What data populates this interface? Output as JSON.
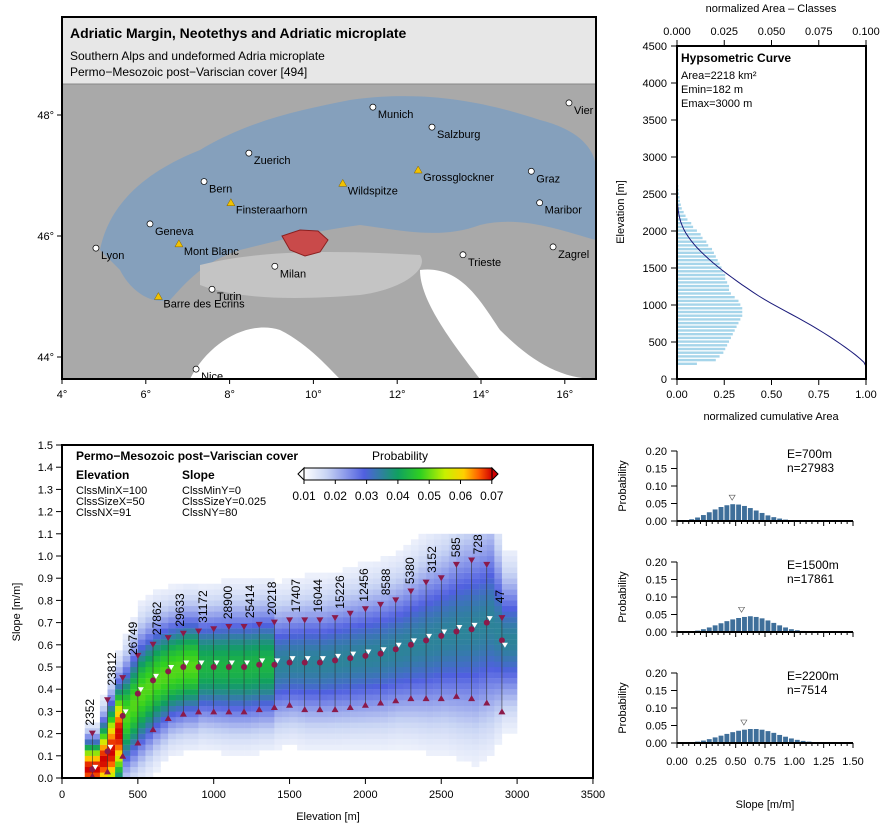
{
  "map": {
    "title": "Adriatic Margin, Neotethys and Adriatic microplate",
    "subtitle1": "Southern Alps and undeformed Adria microplate",
    "subtitle2": "Permo−Mesozoic post−Variscian cover [494]",
    "lon_ticks": [
      "4°",
      "6°",
      "8°",
      "10°",
      "12°",
      "14°",
      "16°"
    ],
    "lat_ticks": [
      "44°",
      "46°",
      "48°"
    ],
    "places": [
      {
        "name": "Munich",
        "lon": 11.42,
        "lat": 48.13,
        "type": "city"
      },
      {
        "name": "Salzburg",
        "lon": 12.83,
        "lat": 47.8,
        "type": "city"
      },
      {
        "name": "Vienna",
        "lon": 16.1,
        "lat": 48.2,
        "type": "city",
        "shown": "Vier"
      },
      {
        "name": "Zuerich",
        "lon": 8.46,
        "lat": 47.37,
        "type": "city"
      },
      {
        "name": "Bern",
        "lon": 7.39,
        "lat": 46.9,
        "type": "city"
      },
      {
        "name": "Wildspitze",
        "lon": 10.7,
        "lat": 46.87,
        "type": "peak"
      },
      {
        "name": "Grossglockner",
        "lon": 12.5,
        "lat": 47.09,
        "type": "peak"
      },
      {
        "name": "Graz",
        "lon": 15.2,
        "lat": 47.07,
        "type": "city"
      },
      {
        "name": "Finsteraarhorn",
        "lon": 8.03,
        "lat": 46.55,
        "type": "peak"
      },
      {
        "name": "Maribor",
        "lon": 15.4,
        "lat": 46.55,
        "type": "city"
      },
      {
        "name": "Geneva",
        "lon": 6.1,
        "lat": 46.2,
        "type": "city"
      },
      {
        "name": "Mont Blanc",
        "lon": 6.79,
        "lat": 45.87,
        "type": "peak"
      },
      {
        "name": "Lyon",
        "lon": 4.81,
        "lat": 45.8,
        "type": "city"
      },
      {
        "name": "Milan",
        "lon": 9.08,
        "lat": 45.5,
        "type": "city"
      },
      {
        "name": "Trieste",
        "lon": 13.57,
        "lat": 45.69,
        "type": "city"
      },
      {
        "name": "Zagreb",
        "lon": 15.72,
        "lat": 45.82,
        "type": "city",
        "shown": "Zagrel"
      },
      {
        "name": "Turin",
        "lon": 7.58,
        "lat": 45.12,
        "type": "city"
      },
      {
        "name": "Barre des Ecrins",
        "lon": 6.3,
        "lat": 45.0,
        "type": "peak"
      },
      {
        "name": "Nice",
        "lon": 7.2,
        "lat": 43.8,
        "type": "city"
      }
    ],
    "colors": {
      "terrain": "#a9a9a9",
      "alps": "#7f9fc0",
      "highlight": "#c94a4a",
      "peak": "#f2c200"
    }
  },
  "chart_data": [
    {
      "type": "bar",
      "name": "hypsometric",
      "title": "Hypsometric Curve",
      "stats": [
        "Area=2218 km²",
        "Emin=182 m",
        "Emax=3000 m"
      ],
      "xlabel_top": "normalized Area –  Classes",
      "xlabel_bottom": "normalized cumulative Area",
      "ylabel": "Elevation [m]",
      "ylim": [
        0,
        4500
      ],
      "xlim_top": [
        0,
        0.1
      ],
      "xlim_bottom": [
        0,
        1
      ],
      "yticks": [
        "0",
        "500",
        "1000",
        "1500",
        "2000",
        "2500",
        "3000",
        "3500",
        "4000",
        "4500"
      ],
      "xticks_top": [
        "0.000",
        "0.025",
        "0.050",
        "0.075",
        "0.100"
      ],
      "xticks_bottom": [
        "0.00",
        "0.25",
        "0.50",
        "0.75",
        "1.00"
      ],
      "elevation": [
        200,
        250,
        300,
        350,
        400,
        450,
        500,
        550,
        600,
        650,
        700,
        750,
        800,
        850,
        900,
        950,
        1000,
        1050,
        1100,
        1150,
        1200,
        1250,
        1300,
        1350,
        1400,
        1450,
        1500,
        1550,
        1600,
        1650,
        1700,
        1750,
        1800,
        1850,
        1900,
        1950,
        2000,
        2050,
        2100,
        2150,
        2200,
        2250,
        2300,
        2350,
        2400,
        2450,
        2500,
        2550,
        2600
      ],
      "area_class": [
        0.01,
        0.02,
        0.022,
        0.024,
        0.025,
        0.026,
        0.027,
        0.028,
        0.029,
        0.03,
        0.031,
        0.032,
        0.033,
        0.034,
        0.034,
        0.034,
        0.033,
        0.032,
        0.03,
        0.028,
        0.027,
        0.027,
        0.026,
        0.025,
        0.025,
        0.024,
        0.023,
        0.022,
        0.021,
        0.02,
        0.019,
        0.018,
        0.016,
        0.015,
        0.013,
        0.012,
        0.01,
        0.008,
        0.007,
        0.005,
        0.004,
        0.003,
        0.002,
        0.0015,
        0.001,
        0.0008,
        0.0005,
        0.0003,
        0.0002
      ],
      "colors": {
        "bars": "#a6d5ea",
        "curve": "#1a1a7a"
      }
    },
    {
      "type": "heatmap",
      "name": "slope-elevation",
      "title": "Permo−Mesozoic post−Variscian cover",
      "legend_title": "Probability",
      "colorbar_ticks": [
        "0.01",
        "0.02",
        "0.03",
        "0.04",
        "0.05",
        "0.06",
        "0.07"
      ],
      "elev_head": "Elevation",
      "elev_params": [
        "ClssMinX=100",
        "ClssSizeX=50",
        "ClssNX=91"
      ],
      "slope_head": "Slope",
      "slope_params": [
        "ClssMinY=0",
        "ClssSizeY=0.025",
        "ClssNY=80"
      ],
      "xlabel": "Elevation [m]",
      "ylabel": "Slope  [m/m]",
      "xlim": [
        0,
        3500
      ],
      "ylim": [
        0,
        1.5
      ],
      "xticks": [
        "0",
        "500",
        "1000",
        "1500",
        "2000",
        "2500",
        "3000",
        "3500"
      ],
      "yticks": [
        "0.0",
        "0.1",
        "0.2",
        "0.3",
        "0.4",
        "0.5",
        "0.6",
        "0.7",
        "0.8",
        "0.9",
        "1.0",
        "1.1",
        "1.2",
        "1.3",
        "1.4",
        "1.5"
      ],
      "elevation": [
        200,
        300,
        400,
        500,
        600,
        700,
        800,
        900,
        1000,
        1100,
        1200,
        1300,
        1400,
        1500,
        1600,
        1700,
        1800,
        1900,
        2000,
        2100,
        2200,
        2300,
        2400,
        2500,
        2600,
        2700,
        2800,
        2900
      ],
      "mean": [
        0.04,
        0.12,
        0.28,
        0.38,
        0.44,
        0.48,
        0.5,
        0.5,
        0.5,
        0.5,
        0.5,
        0.51,
        0.51,
        0.52,
        0.52,
        0.52,
        0.53,
        0.54,
        0.55,
        0.56,
        0.58,
        0.6,
        0.62,
        0.64,
        0.66,
        0.67,
        0.7,
        0.62
      ],
      "median": [
        0.05,
        0.14,
        0.3,
        0.4,
        0.46,
        0.5,
        0.52,
        0.52,
        0.52,
        0.52,
        0.52,
        0.53,
        0.53,
        0.54,
        0.54,
        0.54,
        0.55,
        0.56,
        0.57,
        0.58,
        0.6,
        0.62,
        0.64,
        0.66,
        0.68,
        0.69,
        0.72,
        0.6
      ],
      "upper": [
        0.2,
        0.35,
        0.45,
        0.55,
        0.6,
        0.63,
        0.65,
        0.66,
        0.67,
        0.68,
        0.68,
        0.69,
        0.7,
        0.71,
        0.71,
        0.71,
        0.72,
        0.74,
        0.76,
        0.78,
        0.8,
        0.84,
        0.88,
        0.9,
        0.96,
        0.98,
        0.96,
        0.72
      ],
      "lower": [
        0.01,
        0.03,
        0.1,
        0.16,
        0.22,
        0.27,
        0.29,
        0.3,
        0.3,
        0.3,
        0.3,
        0.31,
        0.32,
        0.33,
        0.31,
        0.31,
        0.31,
        0.32,
        0.33,
        0.34,
        0.35,
        0.36,
        0.36,
        0.36,
        0.37,
        0.36,
        0.34,
        0.3
      ],
      "count_labels": [
        {
          "e": 185,
          "n": "2352"
        },
        {
          "e": 330,
          "n": "23812"
        },
        {
          "e": 468,
          "n": "26749"
        },
        {
          "e": 626,
          "n": "27862"
        },
        {
          "e": 778,
          "n": "29633"
        },
        {
          "e": 929,
          "n": "31172"
        },
        {
          "e": 1094,
          "n": "28900"
        },
        {
          "e": 1239,
          "n": "25414"
        },
        {
          "e": 1384,
          "n": "20218"
        },
        {
          "e": 1543,
          "n": "17407"
        },
        {
          "e": 1688,
          "n": "16044"
        },
        {
          "e": 1833,
          "n": "15226"
        },
        {
          "e": 1990,
          "n": "12456"
        },
        {
          "e": 2136,
          "n": "8588"
        },
        {
          "e": 2294,
          "n": "5380"
        },
        {
          "e": 2439,
          "n": "3152"
        },
        {
          "e": 2597,
          "n": "585"
        },
        {
          "e": 2742,
          "n": "728"
        },
        {
          "e": 2887,
          "n": "47"
        }
      ],
      "colors": {
        "marker": "#8b1a4a",
        "median": "#ffffff"
      }
    },
    {
      "type": "bar",
      "name": "slope-histograms",
      "xlabel": "Slope [m/m]",
      "ylabel": "Probability",
      "xlim": [
        0,
        1.5
      ],
      "ylim": [
        0,
        0.2
      ],
      "xticks": [
        "0.00",
        "0.25",
        "0.50",
        "0.75",
        "1.00",
        "1.25",
        "1.50"
      ],
      "yticks": [
        "0.00",
        "0.05",
        "0.10",
        "0.15",
        "0.20"
      ],
      "bin_width": 0.05,
      "panels": [
        {
          "label_e": "E=700m",
          "label_n": "n=27983",
          "median": 0.47,
          "values": [
            0,
            0.002,
            0.005,
            0.01,
            0.017,
            0.025,
            0.033,
            0.04,
            0.045,
            0.048,
            0.047,
            0.043,
            0.037,
            0.03,
            0.023,
            0.016,
            0.011,
            0.007,
            0.004,
            0.002,
            0.001,
            0.001,
            0,
            0,
            0,
            0,
            0,
            0,
            0,
            0
          ]
        },
        {
          "label_e": "E=1500m",
          "label_n": "n=17861",
          "median": 0.55,
          "values": [
            0,
            0.001,
            0.002,
            0.004,
            0.008,
            0.013,
            0.019,
            0.025,
            0.031,
            0.036,
            0.04,
            0.043,
            0.045,
            0.043,
            0.039,
            0.033,
            0.026,
            0.019,
            0.013,
            0.008,
            0.005,
            0.003,
            0.002,
            0.001,
            0,
            0,
            0,
            0,
            0,
            0
          ]
        },
        {
          "label_e": "E=2200m",
          "label_n": "n=7514",
          "median": 0.57,
          "values": [
            0,
            0.001,
            0.002,
            0.004,
            0.007,
            0.011,
            0.016,
            0.021,
            0.026,
            0.031,
            0.035,
            0.038,
            0.04,
            0.04,
            0.038,
            0.034,
            0.029,
            0.023,
            0.018,
            0.013,
            0.009,
            0.006,
            0.004,
            0.002,
            0.001,
            0.001,
            0,
            0,
            0,
            0
          ]
        }
      ],
      "colors": {
        "bars": "#3f6f9a"
      }
    }
  ]
}
